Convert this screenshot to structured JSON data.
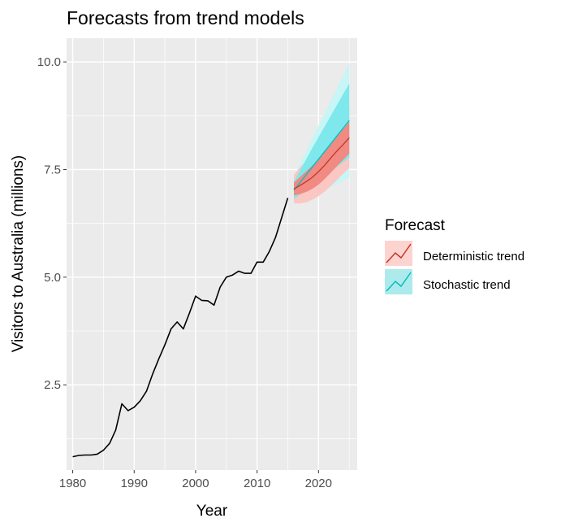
{
  "chart_data": {
    "type": "line",
    "title": "Forecasts from trend models",
    "xlabel": "Year",
    "ylabel": "Visitors to Australia (millions)",
    "xlim": [
      1979,
      2026.3
    ],
    "ylim": [
      0.52,
      10.55
    ],
    "x_ticks": [
      1980,
      1990,
      2000,
      2010,
      2020
    ],
    "x_tick_labels": [
      "1980",
      "1990",
      "2000",
      "2010",
      "2020"
    ],
    "y_ticks": [
      2.5,
      5.0,
      7.5,
      10.0
    ],
    "y_tick_labels": [
      "2.5",
      "5.0",
      "7.5",
      "10.0"
    ],
    "grid": true,
    "panel_background": "#ebebeb",
    "grid_color": "#ffffff",
    "history": {
      "color": "#000000",
      "points": [
        [
          1980,
          0.83
        ],
        [
          1981,
          0.86
        ],
        [
          1982,
          0.87
        ],
        [
          1983,
          0.87
        ],
        [
          1984,
          0.89
        ],
        [
          1985,
          0.98
        ],
        [
          1986,
          1.14
        ],
        [
          1987,
          1.45
        ],
        [
          1988,
          2.06
        ],
        [
          1989,
          1.9
        ],
        [
          1990,
          1.98
        ],
        [
          1991,
          2.13
        ],
        [
          1992,
          2.35
        ],
        [
          1993,
          2.75
        ],
        [
          1994,
          3.1
        ],
        [
          1995,
          3.43
        ],
        [
          1996,
          3.8
        ],
        [
          1997,
          3.96
        ],
        [
          1998,
          3.8
        ],
        [
          1999,
          4.17
        ],
        [
          2000,
          4.56
        ],
        [
          2001,
          4.46
        ],
        [
          2002,
          4.45
        ],
        [
          2003,
          4.35
        ],
        [
          2004,
          4.77
        ],
        [
          2005,
          5.0
        ],
        [
          2006,
          5.05
        ],
        [
          2007,
          5.14
        ],
        [
          2008,
          5.09
        ],
        [
          2009,
          5.09
        ],
        [
          2010,
          5.35
        ],
        [
          2011,
          5.35
        ],
        [
          2012,
          5.6
        ],
        [
          2013,
          5.92
        ],
        [
          2014,
          6.38
        ],
        [
          2015,
          6.84
        ]
      ]
    },
    "legend": {
      "title": "Forecast",
      "position": "right",
      "entries": [
        {
          "label": "Deterministic trend",
          "color": "#f8766d",
          "line_color": "#c0392b"
        },
        {
          "label": "Stochastic trend",
          "color": "#00bfc4",
          "line_color": "#00bfc4"
        }
      ]
    },
    "series": [
      {
        "name": "Stochastic trend",
        "color": "#00bfc4",
        "band80_color": "#7ee8ec",
        "band95_color": "#c8f5f6",
        "x": [
          2016,
          2017,
          2018,
          2019,
          2020,
          2021,
          2022,
          2023,
          2024,
          2025
        ],
        "mean": [
          7.02,
          7.2,
          7.38,
          7.56,
          7.74,
          7.92,
          8.1,
          8.28,
          8.46,
          8.64
        ],
        "lo80": [
          6.82,
          6.92,
          7.02,
          7.12,
          7.23,
          7.34,
          7.45,
          7.56,
          7.67,
          7.78
        ],
        "hi80": [
          7.22,
          7.48,
          7.74,
          8.0,
          8.25,
          8.5,
          8.75,
          9.0,
          9.25,
          9.5
        ],
        "lo95": [
          6.71,
          6.77,
          6.83,
          6.89,
          6.96,
          7.03,
          7.1,
          7.17,
          7.24,
          7.32
        ],
        "hi95": [
          7.33,
          7.63,
          7.93,
          8.23,
          8.52,
          8.81,
          9.1,
          9.39,
          9.68,
          9.97
        ]
      },
      {
        "name": "Deterministic trend",
        "color": "#c0392b",
        "band80_color": "#f08a82",
        "band95_color": "#fbc7c2",
        "x": [
          2016,
          2017,
          2018,
          2019,
          2020,
          2021,
          2022,
          2023,
          2024,
          2025
        ],
        "mean": [
          7.05,
          7.13,
          7.22,
          7.32,
          7.45,
          7.6,
          7.77,
          7.93,
          8.08,
          8.24
        ],
        "lo80": [
          6.9,
          6.93,
          6.98,
          7.05,
          7.15,
          7.28,
          7.43,
          7.58,
          7.72,
          7.87
        ],
        "hi80": [
          7.2,
          7.33,
          7.46,
          7.59,
          7.75,
          7.92,
          8.11,
          8.28,
          8.44,
          8.61
        ],
        "lo95": [
          6.72,
          6.71,
          6.74,
          6.8,
          6.88,
          6.99,
          7.12,
          7.26,
          7.4,
          7.54
        ],
        "hi95": [
          7.38,
          7.55,
          7.7,
          7.84,
          8.02,
          8.21,
          8.42,
          8.6,
          8.76,
          8.94
        ]
      }
    ]
  }
}
